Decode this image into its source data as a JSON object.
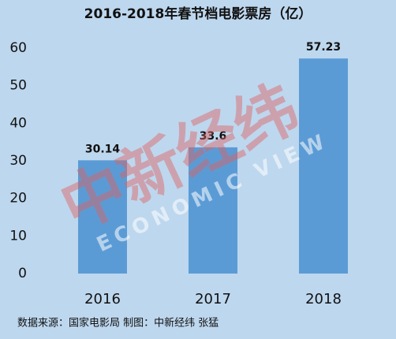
{
  "chart_data": {
    "type": "bar",
    "title": "2016-2018年春节档电影票房（亿）",
    "categories": [
      "2016",
      "2017",
      "2018"
    ],
    "values": [
      30.14,
      33.6,
      57.23
    ],
    "color": "#5b9bd5",
    "ylim": [
      0,
      60
    ],
    "yticks": [
      0,
      10,
      20,
      30,
      40,
      50,
      60
    ],
    "grid": false,
    "watermark": "中新经纬",
    "watermark_sub": "ECONOMIC VIEW",
    "source": "数据来源：国家电影局  制图：中新经纬  张猛"
  }
}
